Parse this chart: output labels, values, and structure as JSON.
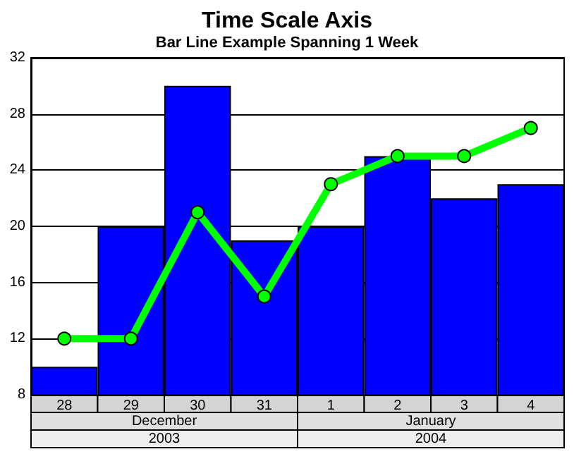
{
  "chart_data": {
    "type": "bar",
    "title": "Time Scale Axis",
    "subtitle": "Bar Line Example Spanning 1 Week",
    "categories": [
      "28",
      "29",
      "30",
      "31",
      "1",
      "2",
      "3",
      "4"
    ],
    "series": [
      {
        "color": "#0000ff",
        "values": [
          10,
          20,
          30,
          19,
          20,
          25,
          22,
          23
        ]
      },
      {
        "type": "line",
        "color": "#00ff00",
        "values": [
          12,
          12,
          21,
          15,
          23,
          25,
          25,
          27
        ]
      }
    ],
    "annotations": [
      "December",
      "January",
      "2003",
      "2004"
    ],
    "ylim": [
      8,
      32
    ],
    "yticks": [
      8,
      12,
      16,
      20,
      24,
      28,
      32
    ],
    "grid": "y",
    "marker": "circle",
    "line_style": "solid"
  }
}
